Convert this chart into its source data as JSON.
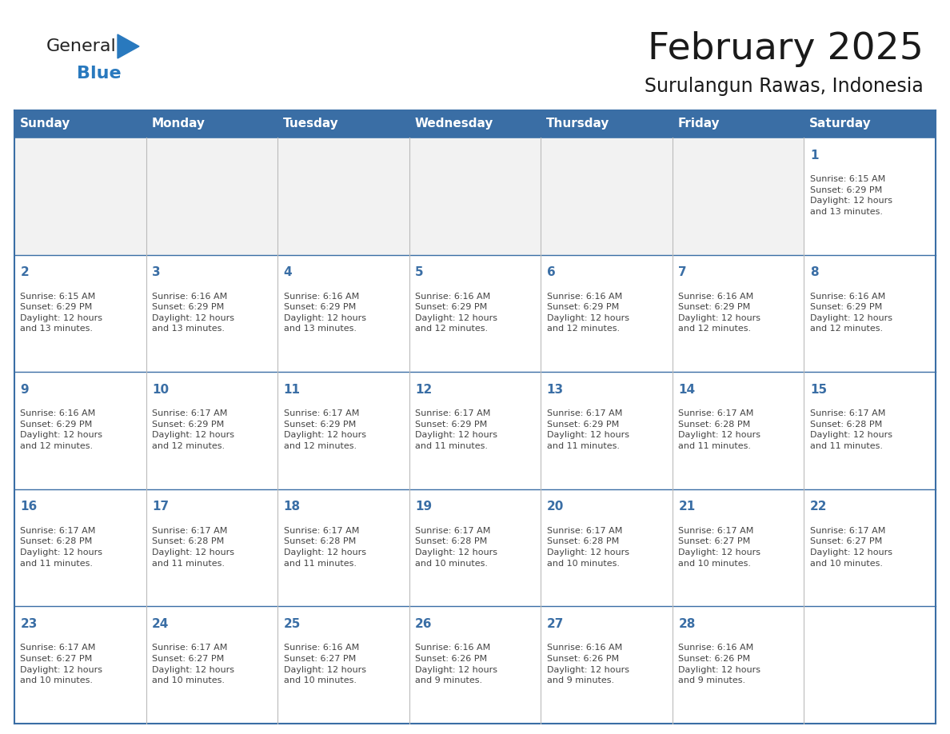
{
  "title": "February 2025",
  "subtitle": "Surulangun Rawas, Indonesia",
  "header_color": "#3A6EA5",
  "header_text_color": "#FFFFFF",
  "border_color": "#3A6EA5",
  "cell_line_color": "#3A6EA5",
  "text_color": "#444444",
  "day_number_color": "#3A6EA5",
  "bg_color": "#FFFFFF",
  "days_of_week": [
    "Sunday",
    "Monday",
    "Tuesday",
    "Wednesday",
    "Thursday",
    "Friday",
    "Saturday"
  ],
  "weeks": [
    [
      {
        "day": null,
        "info": null
      },
      {
        "day": null,
        "info": null
      },
      {
        "day": null,
        "info": null
      },
      {
        "day": null,
        "info": null
      },
      {
        "day": null,
        "info": null
      },
      {
        "day": null,
        "info": null
      },
      {
        "day": 1,
        "info": "Sunrise: 6:15 AM\nSunset: 6:29 PM\nDaylight: 12 hours\nand 13 minutes."
      }
    ],
    [
      {
        "day": 2,
        "info": "Sunrise: 6:15 AM\nSunset: 6:29 PM\nDaylight: 12 hours\nand 13 minutes."
      },
      {
        "day": 3,
        "info": "Sunrise: 6:16 AM\nSunset: 6:29 PM\nDaylight: 12 hours\nand 13 minutes."
      },
      {
        "day": 4,
        "info": "Sunrise: 6:16 AM\nSunset: 6:29 PM\nDaylight: 12 hours\nand 13 minutes."
      },
      {
        "day": 5,
        "info": "Sunrise: 6:16 AM\nSunset: 6:29 PM\nDaylight: 12 hours\nand 12 minutes."
      },
      {
        "day": 6,
        "info": "Sunrise: 6:16 AM\nSunset: 6:29 PM\nDaylight: 12 hours\nand 12 minutes."
      },
      {
        "day": 7,
        "info": "Sunrise: 6:16 AM\nSunset: 6:29 PM\nDaylight: 12 hours\nand 12 minutes."
      },
      {
        "day": 8,
        "info": "Sunrise: 6:16 AM\nSunset: 6:29 PM\nDaylight: 12 hours\nand 12 minutes."
      }
    ],
    [
      {
        "day": 9,
        "info": "Sunrise: 6:16 AM\nSunset: 6:29 PM\nDaylight: 12 hours\nand 12 minutes."
      },
      {
        "day": 10,
        "info": "Sunrise: 6:17 AM\nSunset: 6:29 PM\nDaylight: 12 hours\nand 12 minutes."
      },
      {
        "day": 11,
        "info": "Sunrise: 6:17 AM\nSunset: 6:29 PM\nDaylight: 12 hours\nand 12 minutes."
      },
      {
        "day": 12,
        "info": "Sunrise: 6:17 AM\nSunset: 6:29 PM\nDaylight: 12 hours\nand 11 minutes."
      },
      {
        "day": 13,
        "info": "Sunrise: 6:17 AM\nSunset: 6:29 PM\nDaylight: 12 hours\nand 11 minutes."
      },
      {
        "day": 14,
        "info": "Sunrise: 6:17 AM\nSunset: 6:28 PM\nDaylight: 12 hours\nand 11 minutes."
      },
      {
        "day": 15,
        "info": "Sunrise: 6:17 AM\nSunset: 6:28 PM\nDaylight: 12 hours\nand 11 minutes."
      }
    ],
    [
      {
        "day": 16,
        "info": "Sunrise: 6:17 AM\nSunset: 6:28 PM\nDaylight: 12 hours\nand 11 minutes."
      },
      {
        "day": 17,
        "info": "Sunrise: 6:17 AM\nSunset: 6:28 PM\nDaylight: 12 hours\nand 11 minutes."
      },
      {
        "day": 18,
        "info": "Sunrise: 6:17 AM\nSunset: 6:28 PM\nDaylight: 12 hours\nand 11 minutes."
      },
      {
        "day": 19,
        "info": "Sunrise: 6:17 AM\nSunset: 6:28 PM\nDaylight: 12 hours\nand 10 minutes."
      },
      {
        "day": 20,
        "info": "Sunrise: 6:17 AM\nSunset: 6:28 PM\nDaylight: 12 hours\nand 10 minutes."
      },
      {
        "day": 21,
        "info": "Sunrise: 6:17 AM\nSunset: 6:27 PM\nDaylight: 12 hours\nand 10 minutes."
      },
      {
        "day": 22,
        "info": "Sunrise: 6:17 AM\nSunset: 6:27 PM\nDaylight: 12 hours\nand 10 minutes."
      }
    ],
    [
      {
        "day": 23,
        "info": "Sunrise: 6:17 AM\nSunset: 6:27 PM\nDaylight: 12 hours\nand 10 minutes."
      },
      {
        "day": 24,
        "info": "Sunrise: 6:17 AM\nSunset: 6:27 PM\nDaylight: 12 hours\nand 10 minutes."
      },
      {
        "day": 25,
        "info": "Sunrise: 6:16 AM\nSunset: 6:27 PM\nDaylight: 12 hours\nand 10 minutes."
      },
      {
        "day": 26,
        "info": "Sunrise: 6:16 AM\nSunset: 6:26 PM\nDaylight: 12 hours\nand 9 minutes."
      },
      {
        "day": 27,
        "info": "Sunrise: 6:16 AM\nSunset: 6:26 PM\nDaylight: 12 hours\nand 9 minutes."
      },
      {
        "day": 28,
        "info": "Sunrise: 6:16 AM\nSunset: 6:26 PM\nDaylight: 12 hours\nand 9 minutes."
      },
      {
        "day": null,
        "info": null
      }
    ]
  ],
  "logo_general_color": "#222222",
  "logo_blue_color": "#2979BE",
  "logo_triangle_color": "#2979BE",
  "title_color": "#1a1a1a",
  "subtitle_color": "#1a1a1a"
}
